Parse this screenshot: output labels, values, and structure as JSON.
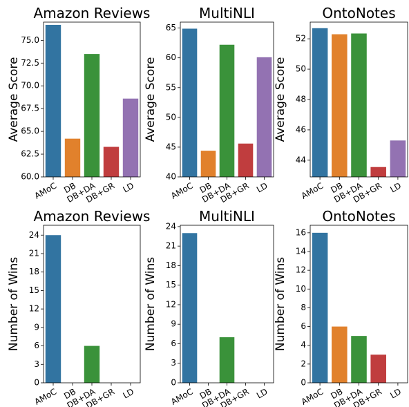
{
  "chart_data": [
    {
      "type": "bar",
      "title": "Amazon Reviews",
      "ylabel": "Average Score",
      "categories": [
        "AMoC",
        "DB",
        "DB+DA",
        "DB+GR",
        "LD"
      ],
      "values": [
        76.7,
        64.2,
        73.5,
        63.3,
        68.6
      ],
      "colors": [
        "#3274a1",
        "#e1812c",
        "#3a923a",
        "#c03d3e",
        "#9372b2"
      ],
      "ylim": [
        60,
        77
      ],
      "yticks": [
        {
          "value": 60,
          "label": "60.0"
        },
        {
          "value": 62.5,
          "label": "62.5"
        },
        {
          "value": 65,
          "label": "65.0"
        },
        {
          "value": 67.5,
          "label": "67.5"
        },
        {
          "value": 70,
          "label": "70.0"
        },
        {
          "value": 72.5,
          "label": "72.5"
        },
        {
          "value": 75,
          "label": "75.0"
        }
      ]
    },
    {
      "type": "bar",
      "title": "MultiNLI",
      "ylabel": "Average Score",
      "categories": [
        "AMoC",
        "DB",
        "DB+DA",
        "DB+GR",
        "LD"
      ],
      "values": [
        64.9,
        44.4,
        62.2,
        45.6,
        60.1
      ],
      "colors": [
        "#3274a1",
        "#e1812c",
        "#3a923a",
        "#c03d3e",
        "#9372b2"
      ],
      "ylim": [
        40,
        66
      ],
      "yticks": [
        40,
        45,
        50,
        55,
        60,
        65
      ]
    },
    {
      "type": "bar",
      "title": "OntoNotes",
      "ylabel": "Average Score",
      "categories": [
        "AMoC",
        "DB",
        "DB+DA",
        "DB+GR",
        "LD"
      ],
      "values": [
        52.7,
        52.3,
        52.35,
        43.55,
        45.3
      ],
      "colors": [
        "#3274a1",
        "#e1812c",
        "#3a923a",
        "#c03d3e",
        "#9372b2"
      ],
      "ylim": [
        42.9,
        53.1
      ],
      "yticks": [
        44,
        46,
        48,
        50,
        52
      ]
    },
    {
      "type": "bar",
      "title": "Amazon Reviews",
      "ylabel": "Number of Wins",
      "categories": [
        "AMoC",
        "DB",
        "DB+DA",
        "DB+GR",
        "LD"
      ],
      "values": [
        24,
        0,
        6,
        0,
        0
      ],
      "colors": [
        "#3274a1",
        "#e1812c",
        "#3a923a",
        "#c03d3e",
        "#9372b2"
      ],
      "ylim": [
        0,
        25.6
      ],
      "yticks": [
        0,
        3,
        6,
        9,
        12,
        15,
        18,
        21,
        24
      ]
    },
    {
      "type": "bar",
      "title": "MultiNLI",
      "ylabel": "Number of Wins",
      "categories": [
        "AMoC",
        "DB",
        "DB+DA",
        "DB+GR",
        "LD"
      ],
      "values": [
        23,
        0,
        7,
        0,
        0
      ],
      "colors": [
        "#3274a1",
        "#e1812c",
        "#3a923a",
        "#c03d3e",
        "#9372b2"
      ],
      "ylim": [
        0,
        24.2
      ],
      "yticks": [
        0,
        3,
        6,
        9,
        12,
        15,
        18,
        21,
        24
      ]
    },
    {
      "type": "bar",
      "title": "OntoNotes",
      "ylabel": "Number of Wins",
      "categories": [
        "AMoC",
        "DB",
        "DB+DA",
        "DB+GR",
        "LD"
      ],
      "values": [
        16,
        6,
        5,
        3,
        0
      ],
      "colors": [
        "#3274a1",
        "#e1812c",
        "#3a923a",
        "#c03d3e",
        "#9372b2"
      ],
      "ylim": [
        0,
        16.8
      ],
      "yticks": [
        0,
        2,
        4,
        6,
        8,
        10,
        12,
        14,
        16
      ]
    }
  ]
}
